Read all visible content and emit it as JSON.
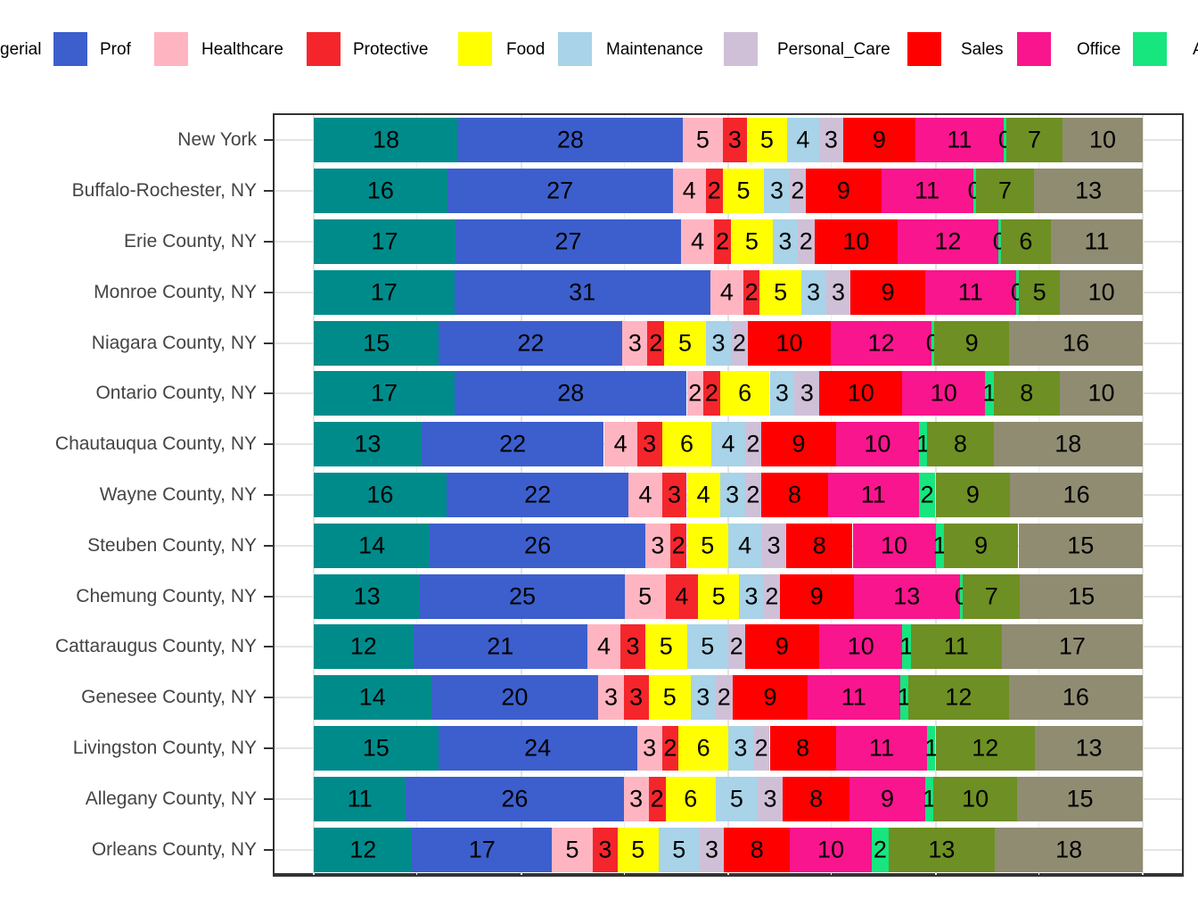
{
  "chart_data": {
    "type": "bar",
    "orientation": "horizontal",
    "stacking": "fill_100_percent",
    "title": "",
    "xlabel": "",
    "ylabel": "",
    "x_axis": {
      "range_percent": [
        0,
        100
      ],
      "tick_labels_visible": false,
      "gridline_step_percent": 12.5
    },
    "legend_position": "top, single row, clipped at left and right image edges",
    "value_labels": "rounded percent printed on each segment",
    "categories": [
      "New York",
      "Buffalo-Rochester, NY",
      "Erie County, NY",
      "Monroe County, NY",
      "Niagara County, NY",
      "Ontario County, NY",
      "Chautauqua County, NY",
      "Wayne County, NY",
      "Steuben County, NY",
      "Chemung County, NY",
      "Cattaraugus County, NY",
      "Genesee County, NY",
      "Livingston County, NY",
      "Allegany County, NY",
      "Orleans County, NY"
    ],
    "series": [
      {
        "name": "gerial (legend label clipped at left edge)",
        "legend_label": "gerial",
        "color": "#008B8B",
        "values": [
          18,
          16,
          17,
          17,
          15,
          17,
          13,
          16,
          14,
          13,
          12,
          14,
          15,
          11,
          12
        ]
      },
      {
        "name": "Prof",
        "legend_label": "Prof",
        "color": "#3C5FCD",
        "values": [
          28,
          27,
          27,
          31,
          22,
          28,
          22,
          22,
          26,
          25,
          21,
          20,
          24,
          26,
          17
        ]
      },
      {
        "name": "Healthcare",
        "legend_label": "Healthcare",
        "color": "#FFB5C1",
        "values": [
          5,
          4,
          4,
          4,
          3,
          2,
          4,
          4,
          3,
          5,
          4,
          3,
          3,
          3,
          5
        ]
      },
      {
        "name": "Protective",
        "legend_label": "Protective",
        "color": "#F4262C",
        "values": [
          3,
          2,
          2,
          2,
          2,
          2,
          3,
          3,
          2,
          4,
          3,
          3,
          2,
          2,
          3
        ]
      },
      {
        "name": "Food",
        "legend_label": "Food",
        "color": "#FFFF00",
        "values": [
          5,
          5,
          5,
          5,
          5,
          6,
          6,
          4,
          5,
          5,
          5,
          5,
          6,
          6,
          5
        ]
      },
      {
        "name": "Maintenance",
        "legend_label": "Maintenance",
        "color": "#A8D3E8",
        "values": [
          4,
          3,
          3,
          3,
          3,
          3,
          4,
          3,
          4,
          3,
          5,
          3,
          3,
          5,
          5
        ]
      },
      {
        "name": "Personal_Care",
        "legend_label": "Personal_Care",
        "color": "#CFC0D8",
        "values": [
          3,
          2,
          2,
          3,
          2,
          3,
          2,
          2,
          3,
          2,
          2,
          2,
          2,
          3,
          3
        ]
      },
      {
        "name": "Sales",
        "legend_label": "Sales",
        "color": "#FF0000",
        "values": [
          9,
          9,
          10,
          9,
          10,
          10,
          9,
          8,
          8,
          9,
          9,
          9,
          8,
          8,
          8
        ]
      },
      {
        "name": "Office",
        "legend_label": "Office",
        "color": "#F9158E",
        "values": [
          11,
          11,
          12,
          11,
          12,
          10,
          10,
          11,
          10,
          13,
          10,
          11,
          11,
          9,
          10
        ]
      },
      {
        "name": "A (legend label clipped at right edge)",
        "legend_label": "A",
        "color": "#17E57E",
        "values": [
          0,
          0,
          0,
          0,
          0,
          1,
          1,
          2,
          1,
          0,
          1,
          1,
          1,
          1,
          2
        ]
      },
      {
        "name": "olive-green series (legend entry off-screen)",
        "legend_label": null,
        "color": "#6E8F23",
        "values": [
          7,
          7,
          6,
          5,
          9,
          8,
          8,
          9,
          9,
          7,
          11,
          12,
          12,
          10,
          13
        ]
      },
      {
        "name": "khaki-tan series (legend entry off-screen)",
        "legend_label": null,
        "color": "#8F8C72",
        "values": [
          10,
          13,
          11,
          10,
          16,
          10,
          18,
          16,
          15,
          15,
          17,
          16,
          13,
          15,
          18
        ]
      }
    ]
  },
  "legend": {
    "visible_items": [
      {
        "label": "gerial",
        "color": "#008B8B",
        "swatch_visible": false
      },
      {
        "label": "Prof",
        "color": "#3C5FCD",
        "swatch_visible": true
      },
      {
        "label": "Healthcare",
        "color": "#FFB5C1",
        "swatch_visible": true
      },
      {
        "label": "Protective",
        "color": "#F4262C",
        "swatch_visible": true
      },
      {
        "label": "Food",
        "color": "#FFFF00",
        "swatch_visible": true
      },
      {
        "label": "Maintenance",
        "color": "#A8D3E8",
        "swatch_visible": true
      },
      {
        "label": "Personal_Care",
        "color": "#CFC0D8",
        "swatch_visible": true
      },
      {
        "label": "Sales",
        "color": "#FF0000",
        "swatch_visible": true
      },
      {
        "label": "Office",
        "color": "#F9158E",
        "swatch_visible": true
      },
      {
        "label": "A",
        "color": "#17E57E",
        "swatch_visible": true
      }
    ]
  },
  "style_colors": {
    "panel_border": "#333333",
    "gridline_major": "#E4E4E4",
    "gridline_minor": "#EDEDED",
    "axis_text": "#444444",
    "bar_label_text": "#000000",
    "background": "#FFFFFF"
  }
}
